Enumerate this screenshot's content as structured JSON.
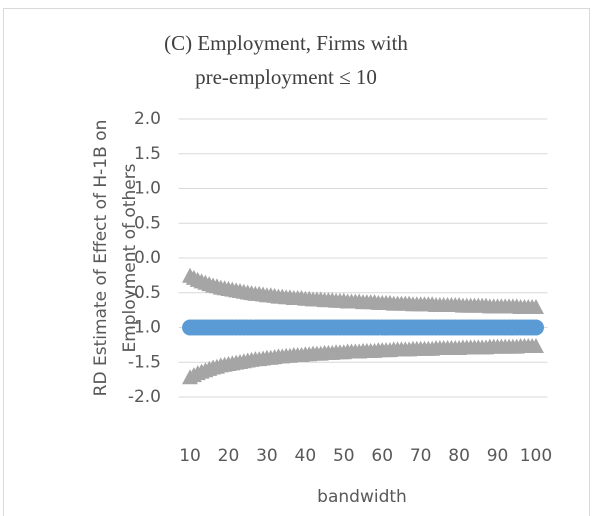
{
  "chart_data": {
    "type": "scatter",
    "title": [
      "(C) Employment, Firms with",
      "pre-employment ≤ 10"
    ],
    "y_label": [
      "RD Estimate of Effect of H-1B on",
      "Employment of others"
    ],
    "x_label": "bandwidth",
    "x": [
      10,
      11,
      12,
      13,
      14,
      15,
      16,
      17,
      18,
      19,
      20,
      21,
      22,
      23,
      24,
      25,
      26,
      27,
      28,
      29,
      30,
      31,
      32,
      33,
      34,
      35,
      36,
      37,
      38,
      39,
      40,
      41,
      42,
      43,
      44,
      45,
      46,
      47,
      48,
      49,
      50,
      51,
      52,
      53,
      54,
      55,
      56,
      57,
      58,
      59,
      60,
      61,
      62,
      63,
      64,
      65,
      66,
      67,
      68,
      69,
      70,
      71,
      72,
      73,
      74,
      75,
      76,
      77,
      78,
      79,
      80,
      81,
      82,
      83,
      84,
      85,
      86,
      87,
      88,
      89,
      90,
      91,
      92,
      93,
      94,
      95,
      96,
      97,
      98,
      99,
      100
    ],
    "series": [
      {
        "color": "#a5a5a5",
        "marker": "triangle",
        "values": [
          -0.27,
          -0.3,
          -0.33,
          -0.35,
          -0.37,
          -0.39,
          -0.41,
          -0.42,
          -0.44,
          -0.45,
          -0.46,
          -0.47,
          -0.48,
          -0.49,
          -0.5,
          -0.51,
          -0.52,
          -0.53,
          -0.53,
          -0.54,
          -0.55,
          -0.55,
          -0.56,
          -0.57,
          -0.57,
          -0.58,
          -0.58,
          -0.59,
          -0.59,
          -0.59,
          -0.6,
          -0.6,
          -0.61,
          -0.61,
          -0.61,
          -0.62,
          -0.62,
          -0.62,
          -0.63,
          -0.63,
          -0.63,
          -0.64,
          -0.64,
          -0.64,
          -0.64,
          -0.65,
          -0.65,
          -0.65,
          -0.65,
          -0.66,
          -0.66,
          -0.66,
          -0.66,
          -0.67,
          -0.67,
          -0.67,
          -0.67,
          -0.67,
          -0.68,
          -0.68,
          -0.68,
          -0.68,
          -0.68,
          -0.68,
          -0.69,
          -0.69,
          -0.69,
          -0.69,
          -0.69,
          -0.69,
          -0.69,
          -0.7,
          -0.7,
          -0.7,
          -0.7,
          -0.7,
          -0.7,
          -0.7,
          -0.71,
          -0.71,
          -0.71,
          -0.71,
          -0.71,
          -0.71,
          -0.71,
          -0.71,
          -0.72,
          -0.72,
          -0.72,
          -0.72,
          -0.72
        ]
      },
      {
        "color": "#a5a5a5",
        "marker": "triangle",
        "values": [
          -1.73,
          -1.7,
          -1.67,
          -1.65,
          -1.63,
          -1.61,
          -1.59,
          -1.58,
          -1.56,
          -1.55,
          -1.54,
          -1.53,
          -1.52,
          -1.51,
          -1.5,
          -1.49,
          -1.48,
          -1.47,
          -1.47,
          -1.46,
          -1.45,
          -1.45,
          -1.44,
          -1.43,
          -1.43,
          -1.42,
          -1.42,
          -1.41,
          -1.41,
          -1.41,
          -1.4,
          -1.4,
          -1.39,
          -1.39,
          -1.39,
          -1.38,
          -1.38,
          -1.38,
          -1.37,
          -1.37,
          -1.37,
          -1.36,
          -1.36,
          -1.36,
          -1.36,
          -1.35,
          -1.35,
          -1.35,
          -1.35,
          -1.34,
          -1.34,
          -1.34,
          -1.34,
          -1.33,
          -1.33,
          -1.33,
          -1.33,
          -1.33,
          -1.32,
          -1.32,
          -1.32,
          -1.32,
          -1.32,
          -1.32,
          -1.31,
          -1.31,
          -1.31,
          -1.31,
          -1.31,
          -1.31,
          -1.31,
          -1.3,
          -1.3,
          -1.3,
          -1.3,
          -1.3,
          -1.3,
          -1.3,
          -1.29,
          -1.29,
          -1.29,
          -1.29,
          -1.29,
          -1.29,
          -1.29,
          -1.29,
          -1.28,
          -1.28,
          -1.28,
          -1.28,
          -1.28
        ]
      },
      {
        "color": "#5b9bd5",
        "marker": "circle",
        "values": [
          -1,
          -1,
          -1,
          -1,
          -1,
          -1,
          -1,
          -1,
          -1,
          -1,
          -1,
          -1,
          -1,
          -1,
          -1,
          -1,
          -1,
          -1,
          -1,
          -1,
          -1,
          -1,
          -1,
          -1,
          -1,
          -1,
          -1,
          -1,
          -1,
          -1,
          -1,
          -1,
          -1,
          -1,
          -1,
          -1,
          -1,
          -1,
          -1,
          -1,
          -1,
          -1,
          -1,
          -1,
          -1,
          -1,
          -1,
          -1,
          -1,
          -1,
          -1,
          -1,
          -1,
          -1,
          -1,
          -1,
          -1,
          -1,
          -1,
          -1,
          -1,
          -1,
          -1,
          -1,
          -1,
          -1,
          -1,
          -1,
          -1,
          -1,
          -1,
          -1,
          -1,
          -1,
          -1,
          -1,
          -1,
          -1,
          -1,
          -1,
          -1,
          -1,
          -1,
          -1,
          -1,
          -1,
          -1,
          -1,
          -1,
          -1,
          -1
        ]
      }
    ],
    "xlim": [
      7,
      103
    ],
    "xticks": [
      10,
      20,
      30,
      40,
      50,
      60,
      70,
      80,
      90,
      100
    ],
    "ylim": [
      -2,
      2
    ],
    "yticks": [
      {
        "value": 2,
        "label": "2.0"
      },
      {
        "value": 1.5,
        "label": "1.5"
      },
      {
        "value": 1,
        "label": "1.0"
      },
      {
        "value": 0.5,
        "label": "0.5"
      },
      {
        "value": 0,
        "label": "0.0"
      },
      {
        "value": -0.5,
        "label": "-0.5"
      },
      {
        "value": -1,
        "label": "-1.0"
      },
      {
        "value": -1.5,
        "label": "-1.5"
      },
      {
        "value": -2,
        "label": "-2.0"
      }
    ],
    "grid": true
  }
}
